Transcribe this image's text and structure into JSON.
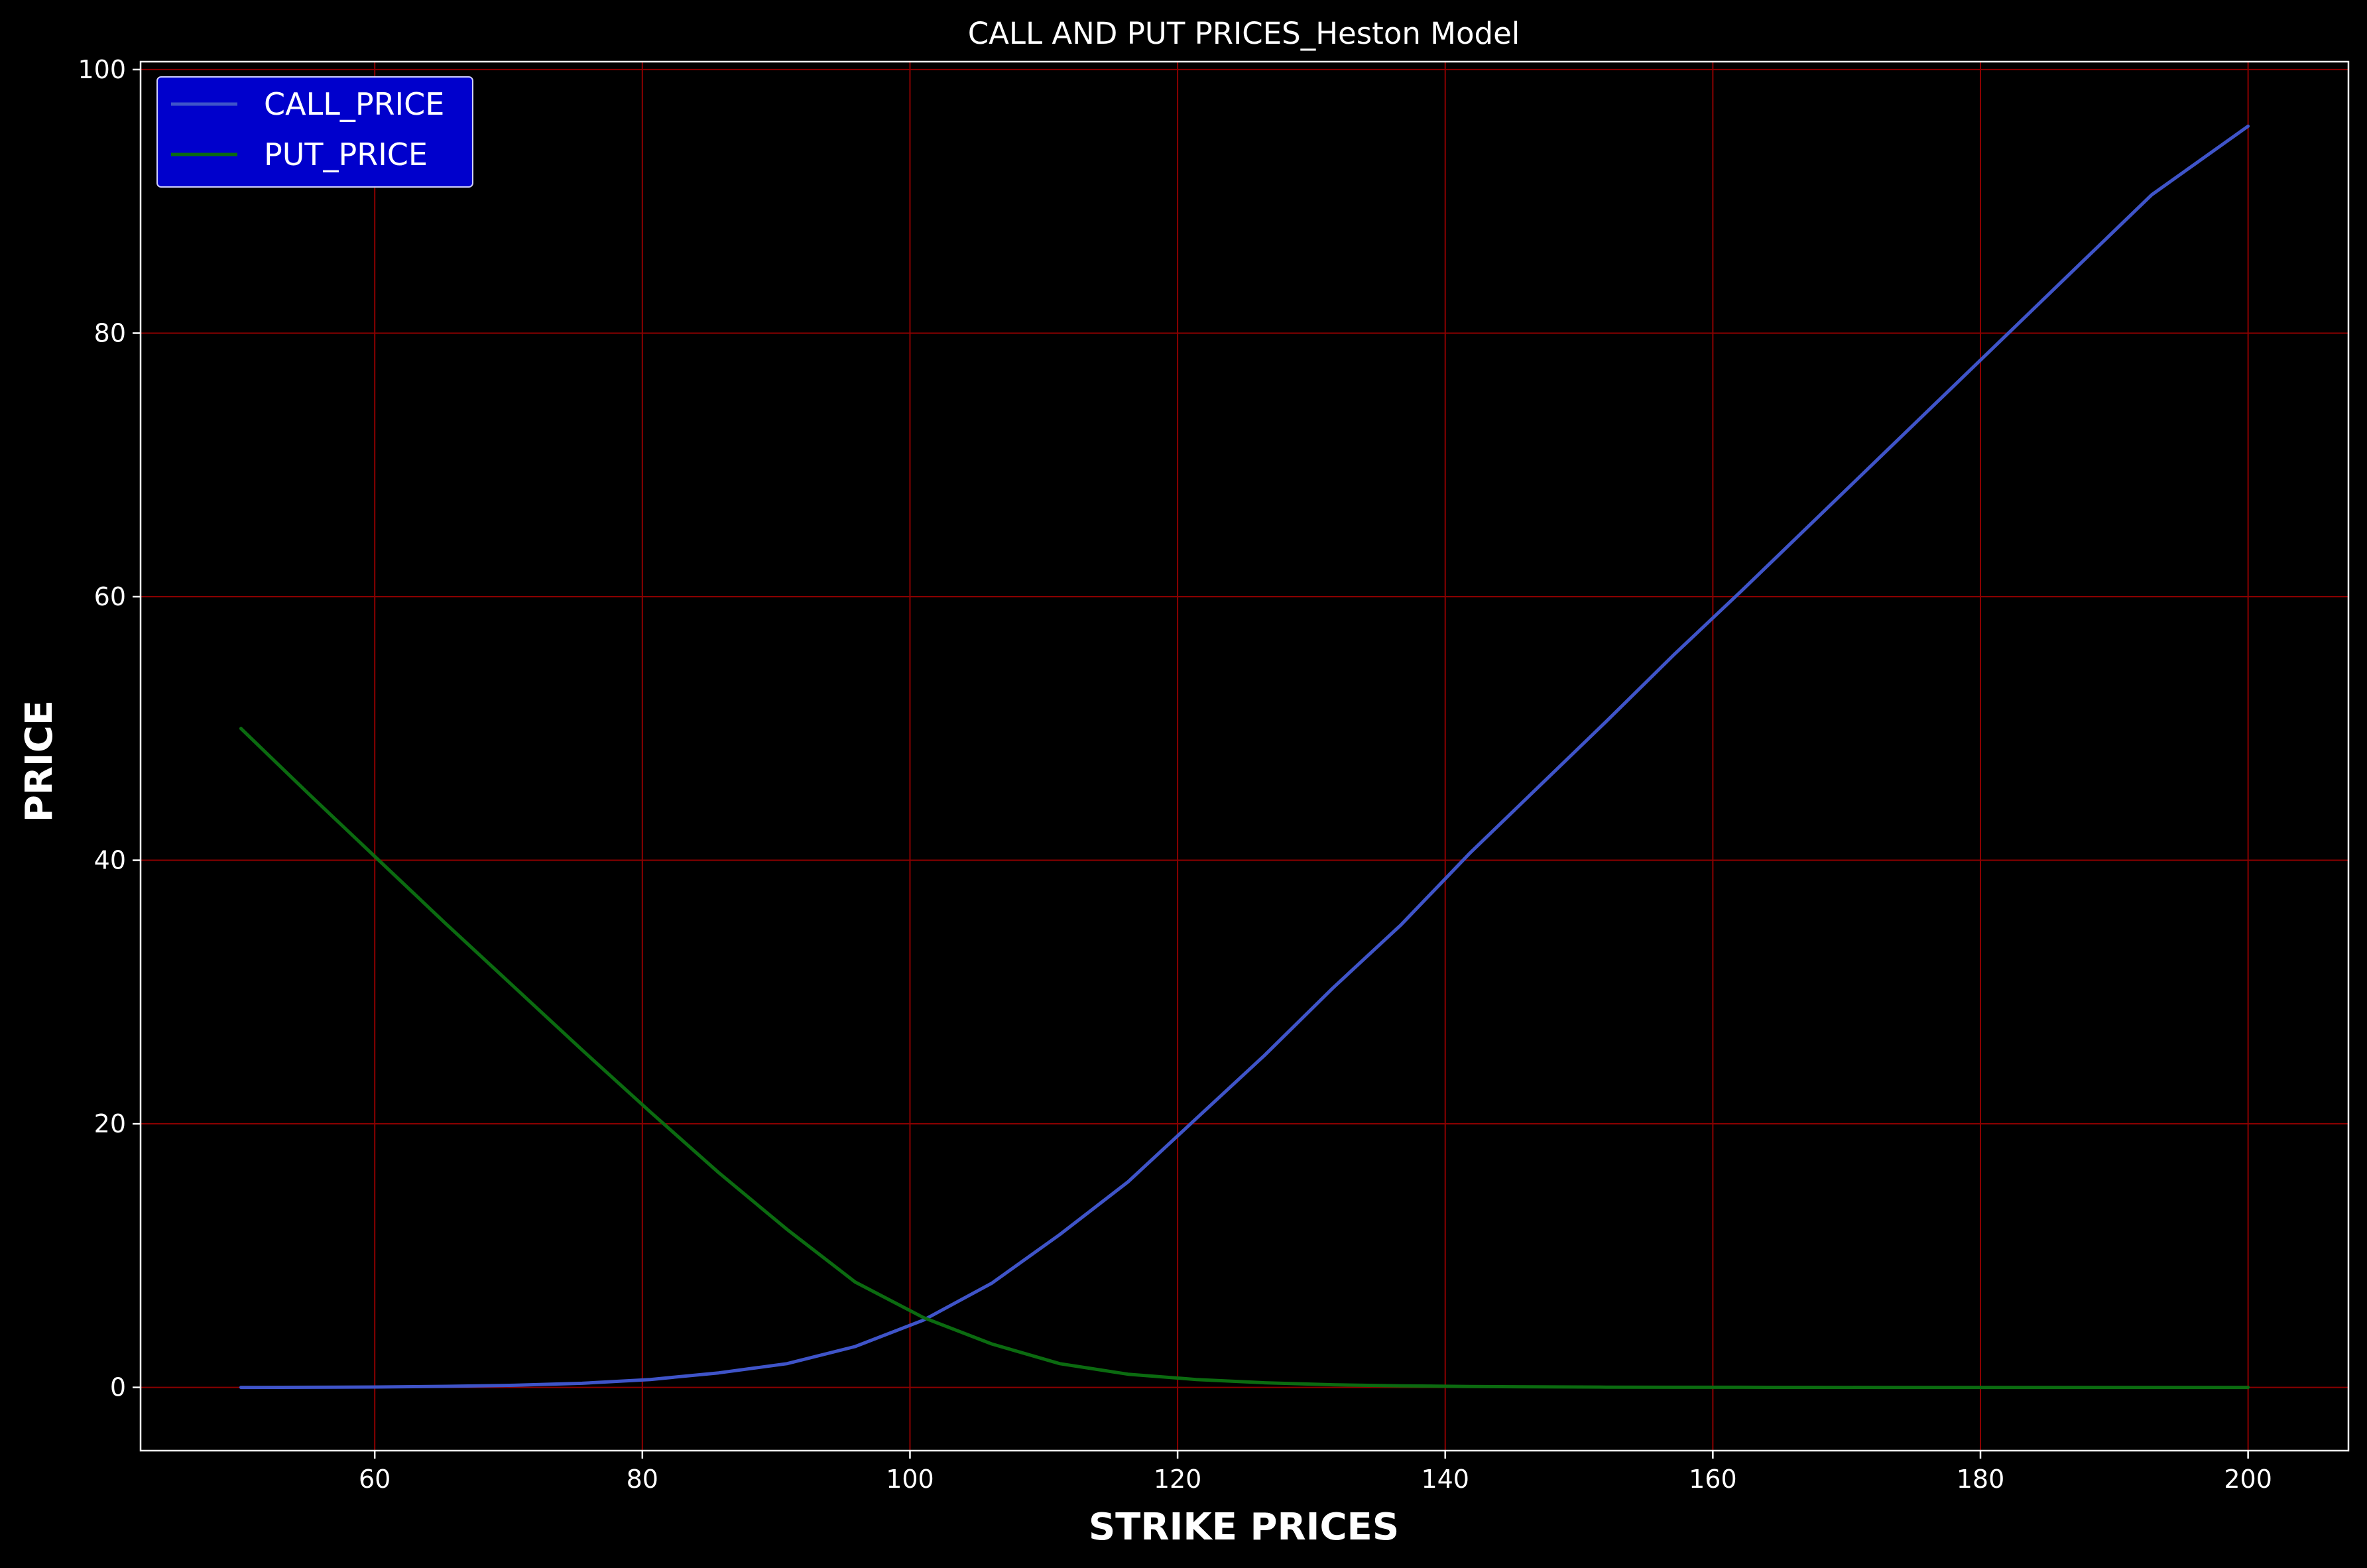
{
  "chart_data": {
    "type": "line",
    "title": "CALL AND PUT PRICES_Heston Model",
    "xlabel": "STRIKE PRICES",
    "ylabel": "PRICE",
    "xlim": [
      42.5,
      207.5
    ],
    "ylim": [
      -4.8,
      100.6
    ],
    "xticks": [
      60,
      80,
      100,
      120,
      140,
      160,
      180,
      200
    ],
    "yticks": [
      0,
      20,
      40,
      60,
      80,
      100
    ],
    "grid": true,
    "legend_position": "upper-left",
    "colors": {
      "background": "#000000",
      "axes": "#ffffff",
      "grid": "#8b0000",
      "legend_bg": "#0000cc",
      "legend_edge": "#d0d0ff"
    },
    "x": [
      50,
      55.1,
      60.2,
      65.3,
      70.4,
      75.5,
      80.6,
      85.7,
      90.8,
      95.9,
      101,
      106.1,
      111.2,
      116.3,
      121.4,
      126.5,
      131.6,
      136.7,
      141.8,
      146.9,
      152,
      157.1,
      162.2,
      167.3,
      172.4,
      177.5,
      182.6,
      187.7,
      192.8,
      200
    ],
    "series": [
      {
        "name": "CALL_PRICE",
        "color": "#3f54c9",
        "values": [
          0,
          0.01,
          0.03,
          0.08,
          0.16,
          0.31,
          0.6,
          1.1,
          1.8,
          3.1,
          5.1,
          7.9,
          11.6,
          15.6,
          20.4,
          25.2,
          30.3,
          35.1,
          40.5,
          45.5,
          50.5,
          55.6,
          60.5,
          65.5,
          70.5,
          75.5,
          80.5,
          85.5,
          90.5,
          95.7
        ]
      },
      {
        "name": "PUT_PRICE",
        "color": "#0b6b10",
        "values": [
          50,
          45.0,
          40.1,
          35.2,
          30.4,
          25.6,
          20.9,
          16.3,
          12.0,
          8.0,
          5.3,
          3.3,
          1.8,
          1.0,
          0.6,
          0.35,
          0.2,
          0.12,
          0.07,
          0.04,
          0.02,
          0.01,
          0.01,
          0.005,
          0,
          0,
          0,
          0,
          0,
          0
        ]
      }
    ]
  }
}
